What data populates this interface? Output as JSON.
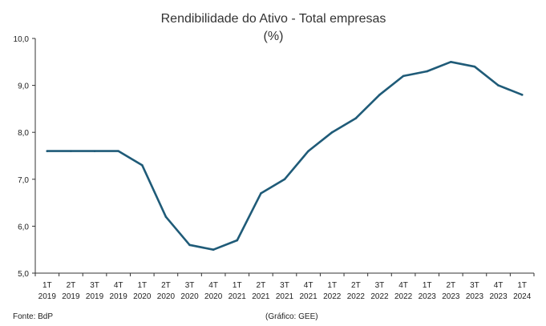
{
  "chart_data": {
    "type": "line",
    "title": "Rendibilidade do Ativo - Total empresas",
    "subtitle": "(%)",
    "categories": [
      [
        "1T",
        "2019"
      ],
      [
        "2T",
        "2019"
      ],
      [
        "3T",
        "2019"
      ],
      [
        "4T",
        "2019"
      ],
      [
        "1T",
        "2020"
      ],
      [
        "2T",
        "2020"
      ],
      [
        "3T",
        "2020"
      ],
      [
        "4T",
        "2020"
      ],
      [
        "1T",
        "2021"
      ],
      [
        "2T",
        "2021"
      ],
      [
        "3T",
        "2021"
      ],
      [
        "4T",
        "2021"
      ],
      [
        "1T",
        "2022"
      ],
      [
        "2T",
        "2022"
      ],
      [
        "3T",
        "2022"
      ],
      [
        "4T",
        "2022"
      ],
      [
        "1T",
        "2023"
      ],
      [
        "2T",
        "2023"
      ],
      [
        "3T",
        "2023"
      ],
      [
        "4T",
        "2023"
      ],
      [
        "1T",
        "2024"
      ]
    ],
    "series": [
      {
        "values": [
          7.6,
          7.6,
          7.6,
          7.6,
          7.3,
          6.2,
          5.6,
          5.5,
          5.7,
          6.7,
          7.0,
          7.6,
          8.0,
          8.3,
          8.8,
          9.2,
          9.3,
          9.5,
          9.4,
          9.0,
          8.8
        ],
        "color": "#1f5b78"
      }
    ],
    "ylim": [
      5.0,
      10.0
    ],
    "yticks": [
      "5,0",
      "6,0",
      "7,0",
      "8,0",
      "9,0",
      "10,0"
    ],
    "grid": false,
    "legend": "none"
  },
  "footer": {
    "source": "Fonte: BdP",
    "credit": "(Gráfico: GEE)"
  }
}
